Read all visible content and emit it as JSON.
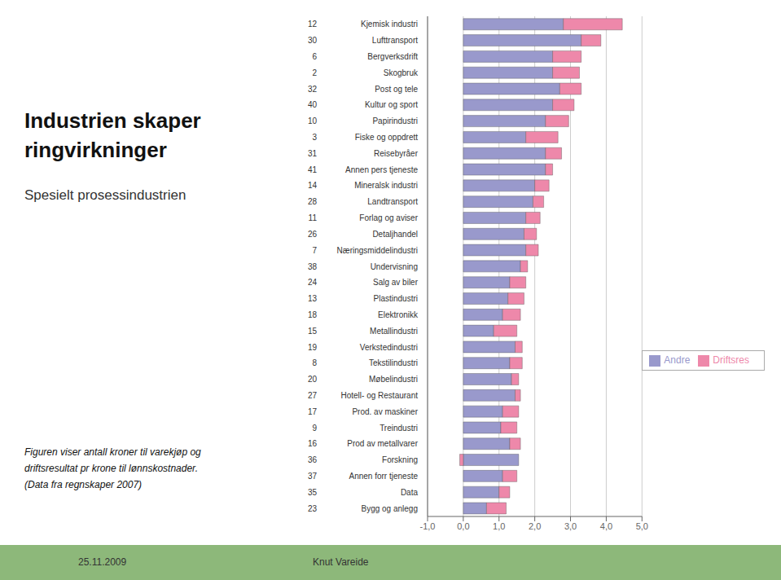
{
  "chart_data": {
    "type": "bar",
    "orientation": "horizontal",
    "stacked": true,
    "title": "Industrien skaper ringvirkninger",
    "subtitle": "Spesielt prosessindustrien",
    "notes": [
      "Figuren viser antall kroner til varekjøp og",
      "driftsresultat pr krone til lønnskostnader.",
      "(Data fra regnskaper 2007)"
    ],
    "date": "25.11.2009",
    "author": "Knut Vareide",
    "categories": [
      "Kjemisk industri",
      "Lufttransport",
      "Bergverksdrift",
      "Skogbruk",
      "Post og tele",
      "Kultur og sport",
      "Papirindustri",
      "Fiske og oppdrett",
      "Reisebyråer",
      "Annen pers tjeneste",
      "Mineralsk industri",
      "Landtransport",
      "Forlag og aviser",
      "Detaljhandel",
      "Næringsmiddelindustri",
      "Undervisning",
      "Salg av biler",
      "Plastindustri",
      "Elektronikk",
      "Metallindustri",
      "Verkstedindustri",
      "Tekstilindustri",
      "Møbelindustri",
      "Hotell- og Restaurant",
      "Prod. av maskiner",
      "Treindustri",
      "Prod av metallvarer",
      "Forskning",
      "Annen forr tjeneste",
      "Data",
      "Bygg og anlegg"
    ],
    "numbers": [
      "12",
      "30",
      "6",
      "2",
      "32",
      "40",
      "10",
      "3",
      "31",
      "41",
      "14",
      "28",
      "11",
      "26",
      "7",
      "38",
      "24",
      "13",
      "18",
      "15",
      "19",
      "8",
      "20",
      "27",
      "17",
      "9",
      "16",
      "36",
      "37",
      "35",
      "23"
    ],
    "series": [
      {
        "name": "Andre",
        "color": "#9999cc",
        "values": [
          2.8,
          3.3,
          2.5,
          2.5,
          2.7,
          2.5,
          2.3,
          1.75,
          2.3,
          2.3,
          2.0,
          1.95,
          1.75,
          1.7,
          1.75,
          1.6,
          1.3,
          1.25,
          1.1,
          0.85,
          1.45,
          1.3,
          1.35,
          1.45,
          1.1,
          1.05,
          1.3,
          1.55,
          1.1,
          1.0,
          0.65
        ]
      },
      {
        "name": "Driftsres",
        "color": "#ee88aa",
        "values": [
          1.65,
          0.55,
          0.8,
          0.75,
          0.6,
          0.6,
          0.65,
          0.9,
          0.45,
          0.2,
          0.4,
          0.3,
          0.4,
          0.35,
          0.35,
          0.2,
          0.45,
          0.45,
          0.5,
          0.65,
          0.2,
          0.35,
          0.2,
          0.15,
          0.45,
          0.45,
          0.3,
          -0.1,
          0.4,
          0.3,
          0.55
        ]
      }
    ],
    "xlim": [
      -1.0,
      5.0
    ],
    "xticks": [
      {
        "value": -1.0,
        "label": "-1,0"
      },
      {
        "value": 0.0,
        "label": "0,0"
      },
      {
        "value": 1.0,
        "label": "1,0"
      },
      {
        "value": 2.0,
        "label": "2,0"
      },
      {
        "value": 3.0,
        "label": "3,0"
      },
      {
        "value": 4.0,
        "label": "4,0"
      },
      {
        "value": 5.0,
        "label": "5,0"
      }
    ],
    "grid": true,
    "legend": "right"
  }
}
